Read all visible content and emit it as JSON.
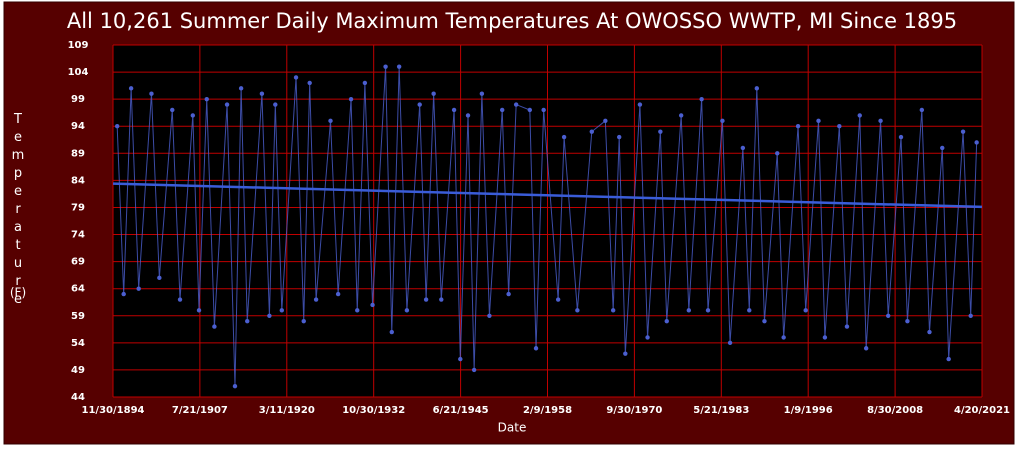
{
  "chart_data": {
    "type": "scatter",
    "title": "All 10,261 Summer Daily Maximum Temperatures At OWOSSO WWTP, MI Since 1895",
    "xlabel": "Date",
    "ylabel": "Temperature",
    "ylabel_unit": "(F)",
    "xlim": [
      "11/30/1894",
      "4/20/2021"
    ],
    "xticks": [
      "11/30/1894",
      "7/21/1907",
      "3/11/1920",
      "10/30/1932",
      "6/21/1945",
      "2/9/1958",
      "9/30/1970",
      "5/21/1983",
      "1/9/1996",
      "8/30/2008",
      "4/20/2021"
    ],
    "ylim": [
      44,
      109
    ],
    "yticks": [
      44,
      49,
      54,
      59,
      64,
      69,
      74,
      79,
      84,
      89,
      94,
      99,
      104,
      109
    ],
    "grid": true,
    "series": [
      {
        "color": "#4b5fd0",
        "x": [
          "7/10/1895",
          "6/20/1896",
          "7/20/1897",
          "8/25/1898",
          "7/5/1900",
          "8/28/1901",
          "7/15/1903",
          "8/30/1904",
          "7/10/1906",
          "6/5/1907",
          "7/20/1908",
          "8/30/1909",
          "7/4/1911",
          "8/28/1912",
          "7/20/1913",
          "6/10/1914",
          "7/28/1916",
          "8/30/1917",
          "7/10/1918",
          "6/20/1919",
          "7/15/1921",
          "8/28/1922",
          "7/10/1923",
          "6/15/1924",
          "7/20/1926",
          "8/29/1927",
          "7/15/1929",
          "6/10/1930",
          "7/20/1931",
          "8/30/1932",
          "7/24/1934",
          "6/18/1935",
          "7/14/1936",
          "8/29/1937",
          "7/10/1939",
          "6/15/1940",
          "7/20/1941",
          "8/30/1942",
          "7/10/1944",
          "6/5/1945",
          "7/20/1946",
          "6/10/1947",
          "7/25/1948",
          "8/30/1949",
          "7/10/1951",
          "6/15/1952",
          "7/20/1953",
          "7/15/1955",
          "6/10/1956",
          "7/20/1957",
          "8/29/1959",
          "7/10/1960",
          "6/15/1962",
          "7/20/1964",
          "7/10/1966",
          "8/30/1967",
          "7/15/1968",
          "6/5/1969",
          "7/20/1971",
          "8/29/1972",
          "7/10/1974",
          "6/15/1975",
          "7/20/1977",
          "8/30/1978",
          "7/10/1980",
          "6/15/1981",
          "7/20/1983",
          "8/29/1984",
          "7/10/1986",
          "6/15/1987",
          "7/20/1988",
          "8/30/1989",
          "7/10/1991",
          "6/15/1992",
          "7/20/1994",
          "8/29/1995",
          "7/10/1997",
          "6/15/1998",
          "7/20/2000",
          "8/30/2001",
          "7/10/2003",
          "6/15/2004",
          "7/20/2006",
          "8/29/2007",
          "7/10/2009",
          "6/15/2010",
          "7/20/2012",
          "8/30/2013",
          "7/10/2015",
          "6/15/2016",
          "7/20/2018",
          "8/29/2019",
          "7/10/2020"
        ],
        "values": [
          94,
          63,
          101,
          64,
          100,
          66,
          97,
          62,
          96,
          60,
          99,
          57,
          98,
          46,
          101,
          58,
          100,
          59,
          98,
          60,
          103,
          58,
          102,
          62,
          95,
          63,
          99,
          60,
          102,
          61,
          105,
          56,
          105,
          60,
          98,
          62,
          100,
          62,
          97,
          51,
          96,
          49,
          100,
          59,
          97,
          63,
          98,
          97,
          53,
          97,
          62,
          92,
          60,
          93,
          95,
          60,
          92,
          52,
          98,
          55,
          93,
          58,
          96,
          60,
          99,
          60,
          95,
          54,
          90,
          60,
          101,
          58,
          89,
          55,
          94,
          60,
          95,
          55,
          94,
          57,
          96,
          53,
          95,
          59,
          92,
          58,
          97,
          56,
          90,
          51,
          93,
          59,
          91
        ]
      }
    ],
    "trend": {
      "color": "#3a5cd8",
      "x": [
        "11/30/1894",
        "4/20/2021"
      ],
      "values": [
        83.4,
        79.1
      ]
    }
  }
}
